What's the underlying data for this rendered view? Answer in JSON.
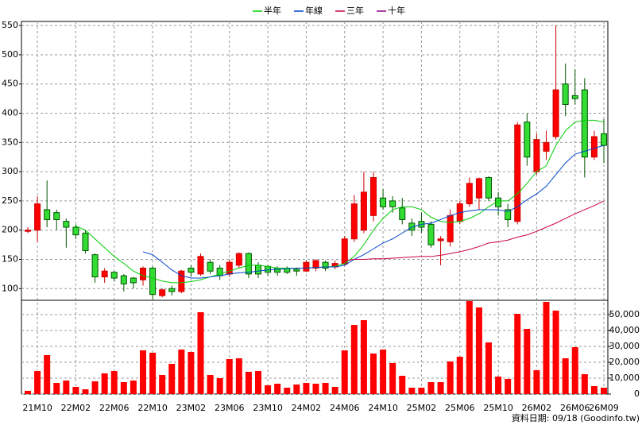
{
  "chart_data": [
    {
      "type": "candlestick",
      "categories": [
        null,
        "21M10",
        null,
        null,
        null,
        "22M02",
        null,
        null,
        null,
        "22M06",
        null,
        null,
        null,
        "22M10",
        null,
        null,
        null,
        "23M02",
        null,
        null,
        null,
        "23M06",
        null,
        null,
        null,
        "23M10",
        null,
        null,
        null,
        "24M02",
        null,
        null,
        null,
        "24M06",
        null,
        null,
        null,
        "24M10",
        null,
        null,
        null,
        "25M02",
        null,
        null,
        null,
        "25M06",
        null,
        null,
        null,
        "25M10",
        null,
        null,
        null,
        "26M02",
        null,
        null,
        null,
        "26M06",
        null,
        null,
        "26M09"
      ],
      "open": [
        198,
        200,
        235,
        230,
        215,
        205,
        195,
        158,
        120,
        128,
        122,
        118,
        115,
        135,
        88,
        100,
        95,
        135,
        125,
        145,
        135,
        125,
        140,
        160,
        140,
        138,
        135,
        135,
        133,
        130,
        135,
        145,
        137,
        142,
        185,
        200,
        225,
        255,
        250,
        238,
        212,
        215,
        210,
        182,
        180,
        215,
        245,
        255,
        290,
        255,
        235,
        215,
        385,
        300,
        335,
        360,
        450,
        430,
        440,
        325,
        365
      ],
      "high": [
        205,
        258,
        285,
        235,
        220,
        210,
        200,
        160,
        135,
        130,
        125,
        120,
        138,
        138,
        100,
        105,
        132,
        140,
        160,
        150,
        140,
        150,
        162,
        162,
        145,
        140,
        138,
        138,
        135,
        148,
        150,
        148,
        148,
        190,
        260,
        300,
        300,
        270,
        258,
        255,
        220,
        230,
        215,
        190,
        235,
        250,
        290,
        290,
        292,
        265,
        245,
        385,
        400,
        365,
        370,
        550,
        485,
        475,
        460,
        370,
        390
      ],
      "low": [
        195,
        180,
        205,
        200,
        170,
        185,
        160,
        110,
        110,
        112,
        95,
        100,
        105,
        82,
        85,
        88,
        92,
        120,
        122,
        125,
        115,
        120,
        135,
        118,
        118,
        122,
        122,
        125,
        122,
        128,
        130,
        130,
        133,
        140,
        180,
        195,
        215,
        235,
        230,
        210,
        190,
        195,
        170,
        140,
        172,
        210,
        240,
        235,
        250,
        225,
        205,
        210,
        310,
        295,
        320,
        355,
        395,
        415,
        290,
        320,
        315
      ],
      "close": [
        200,
        245,
        218,
        218,
        205,
        192,
        165,
        120,
        130,
        118,
        108,
        110,
        135,
        90,
        98,
        95,
        130,
        128,
        155,
        130,
        122,
        145,
        160,
        125,
        125,
        128,
        128,
        128,
        130,
        145,
        148,
        135,
        143,
        185,
        245,
        265,
        290,
        240,
        240,
        218,
        200,
        205,
        175,
        185,
        225,
        245,
        280,
        288,
        255,
        240,
        218,
        380,
        325,
        355,
        350,
        440,
        415,
        425,
        325,
        360,
        345
      ],
      "up_color": "#ff0000",
      "down_color": "#33dd33",
      "series": [
        {
          "name": "半年",
          "color": "#00cc00",
          "values": [
            null,
            null,
            null,
            null,
            null,
            207,
            200,
            185,
            170,
            155,
            143,
            130,
            122,
            118,
            113,
            110,
            110,
            112,
            115,
            120,
            125,
            130,
            135,
            140,
            140,
            138,
            135,
            135,
            135,
            135,
            136,
            137,
            138,
            143,
            155,
            175,
            200,
            220,
            235,
            240,
            240,
            235,
            222,
            215,
            213,
            215,
            220,
            228,
            240,
            250,
            250,
            262,
            280,
            300,
            310,
            345,
            370,
            385,
            388,
            388,
            385
          ]
        },
        {
          "name": "年線",
          "color": "#0044cc",
          "values": [
            null,
            null,
            null,
            null,
            null,
            null,
            null,
            null,
            null,
            null,
            null,
            null,
            163,
            158,
            145,
            132,
            122,
            118,
            118,
            120,
            122,
            125,
            127,
            128,
            130,
            132,
            133,
            134,
            135,
            135,
            136,
            137,
            137,
            140,
            150,
            158,
            168,
            178,
            185,
            195,
            205,
            210,
            212,
            218,
            225,
            230,
            233,
            235,
            235,
            235,
            232,
            240,
            252,
            262,
            275,
            295,
            315,
            330,
            335,
            340,
            345
          ]
        },
        {
          "name": "三年",
          "color": "#cc0044",
          "values": [
            null,
            null,
            null,
            null,
            null,
            null,
            null,
            null,
            null,
            null,
            null,
            null,
            null,
            null,
            null,
            null,
            null,
            null,
            null,
            null,
            null,
            null,
            null,
            null,
            null,
            null,
            null,
            null,
            null,
            null,
            null,
            null,
            null,
            148,
            150,
            150,
            151,
            151,
            152,
            153,
            154,
            155,
            155,
            157,
            160,
            163,
            167,
            172,
            178,
            180,
            183,
            188,
            192,
            198,
            205,
            212,
            220,
            228,
            235,
            242,
            250
          ]
        },
        {
          "name": "十年",
          "color": "#880088",
          "values": [
            null,
            null,
            null,
            null,
            null,
            null,
            null,
            null,
            null,
            null,
            null,
            null,
            null,
            null,
            null,
            null,
            null,
            null,
            null,
            null,
            null,
            null,
            null,
            null,
            null,
            null,
            null,
            null,
            null,
            null,
            null,
            null,
            null,
            null,
            null,
            null,
            null,
            null,
            null,
            null,
            null,
            null,
            null,
            null,
            null,
            null,
            null,
            null,
            null,
            null,
            null,
            null,
            null,
            null,
            null,
            null,
            null,
            null,
            null,
            null,
            null
          ]
        }
      ],
      "ylim": [
        80,
        557
      ],
      "yticks": [
        100,
        150,
        200,
        250,
        300,
        350,
        400,
        450,
        500,
        550
      ],
      "grid": true,
      "legend": "top"
    },
    {
      "type": "bar",
      "color": "#ff0000",
      "values": [
        2000,
        14500,
        24500,
        7000,
        8500,
        4500,
        3000,
        8000,
        13000,
        14500,
        7500,
        8500,
        27500,
        26000,
        12000,
        19000,
        28000,
        26500,
        51500,
        12000,
        10000,
        22000,
        22500,
        14000,
        14500,
        5500,
        6500,
        4000,
        6000,
        7000,
        6500,
        7000,
        4500,
        27500,
        43500,
        46500,
        25500,
        28000,
        19500,
        11500,
        4000,
        4000,
        7500,
        7500,
        20500,
        23500,
        58500,
        54500,
        32500,
        11000,
        9500,
        50500,
        41000,
        15000,
        58000,
        52500,
        22500,
        29500,
        12500,
        5000,
        4000
      ],
      "ylim": [
        0,
        59000
      ],
      "yticks": [
        {
          "value": 0,
          "label": "0"
        },
        {
          "value": 10000,
          "label": "10,000"
        },
        {
          "value": 20000,
          "label": "20,000"
        },
        {
          "value": 30000,
          "label": "30,000"
        },
        {
          "value": 40000,
          "label": "40,000"
        },
        {
          "value": 50000,
          "label": "50,000"
        }
      ],
      "grid": true,
      "source": "資料日期: 09/18 (Goodinfo.tw)"
    }
  ]
}
